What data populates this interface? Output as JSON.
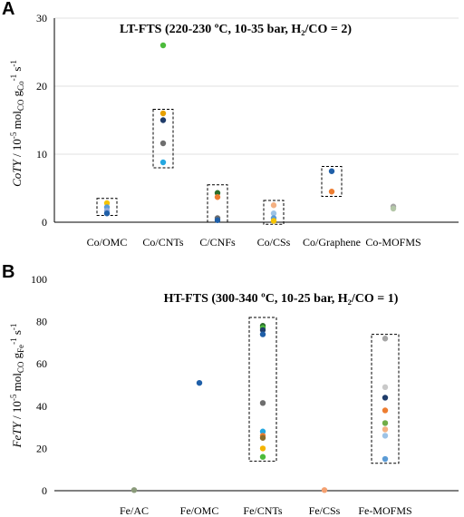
{
  "chart_data": [
    {
      "type": "scatter",
      "panel": "A",
      "title": "LT-FTS (220-230 ºC, 10-35 bar, H₂/CO = 2)",
      "ylabel": "CoTY / 10⁻⁵ mol_CO g_Co⁻¹ s⁻¹",
      "ylabel_parts": {
        "ital": "CoTY",
        "mid": " / 10",
        "sup1": "-5",
        "mid2": " mol",
        "sub1": "CO",
        "mid3": " g",
        "sub2": "Co",
        "sup2": "-1",
        "mid4": " s",
        "sup3": "-1"
      },
      "ylim": [
        0,
        30
      ],
      "yticks": [
        "0",
        "10",
        "20",
        "30"
      ],
      "grid": true,
      "categories": [
        "Co/OMC",
        "Co/CNTs",
        "C/CNFs",
        "Co/CSs",
        "Co/Graphene",
        "Co-MOFMS"
      ],
      "points": [
        {
          "cat": 0,
          "y": 2.8,
          "color": "#f5c400"
        },
        {
          "cat": 0,
          "y": 2.2,
          "color": "#5b9bd5"
        },
        {
          "cat": 0,
          "y": 1.7,
          "color": "#8faadc"
        },
        {
          "cat": 0,
          "y": 1.3,
          "color": "#1f5fa8"
        },
        {
          "cat": 1,
          "y": 26.0,
          "color": "#4cbb3c"
        },
        {
          "cat": 1,
          "y": 16.0,
          "color": "#e6a000"
        },
        {
          "cat": 1,
          "y": 15.0,
          "color": "#1f3c6a"
        },
        {
          "cat": 1,
          "y": 11.6,
          "color": "#6e6e6e"
        },
        {
          "cat": 1,
          "y": 8.8,
          "color": "#25a7e0"
        },
        {
          "cat": 2,
          "y": 4.3,
          "color": "#2b6e2b"
        },
        {
          "cat": 2,
          "y": 3.7,
          "color": "#ed7d31"
        },
        {
          "cat": 2,
          "y": 0.6,
          "color": "#6e6e6e"
        },
        {
          "cat": 2,
          "y": 0.3,
          "color": "#1f5fa8"
        },
        {
          "cat": 3,
          "y": 2.5,
          "color": "#f4b183"
        },
        {
          "cat": 3,
          "y": 1.3,
          "color": "#9dc3e6"
        },
        {
          "cat": 3,
          "y": 0.6,
          "color": "#5b9bd5"
        },
        {
          "cat": 3,
          "y": 0.2,
          "color": "#f5c400"
        },
        {
          "cat": 4,
          "y": 7.5,
          "color": "#1f5fa8"
        },
        {
          "cat": 4,
          "y": 4.5,
          "color": "#ed7d31"
        },
        {
          "cat": 5,
          "y": 2.3,
          "color": "#a5a5a5"
        },
        {
          "cat": 5,
          "y": 2.0,
          "color": "#b4c7a8"
        }
      ],
      "boxes": [
        {
          "cat": 0,
          "ymin": 1.0,
          "ymax": 3.5
        },
        {
          "cat": 1,
          "ymin": 8.0,
          "ymax": 16.6
        },
        {
          "cat": 2,
          "ymin": 0.0,
          "ymax": 5.5
        },
        {
          "cat": 3,
          "ymin": -0.3,
          "ymax": 3.2
        },
        {
          "cat": 4,
          "ymin": 3.8,
          "ymax": 8.2
        }
      ]
    },
    {
      "type": "scatter",
      "panel": "B",
      "title": "HT-FTS (300-340 ºC, 10-25 bar, H₂/CO = 1)",
      "ylabel": "FeTY / 10⁻⁵ mol_CO g_Fe⁻¹ s⁻¹",
      "ylabel_parts": {
        "ital": "FeTY",
        "mid": " / 10",
        "sup1": "-5",
        "mid2": " mol",
        "sub1": "CO",
        "mid3": " g",
        "sub2": "Fe",
        "sup2": "-1",
        "mid4": " s",
        "sup3": "-1"
      },
      "ylim": [
        0,
        100
      ],
      "yticks": [
        "0",
        "20",
        "40",
        "60",
        "80",
        "100"
      ],
      "grid": false,
      "categories": [
        "Fe/AC",
        "Fe/OMC",
        "Fe/CNTs",
        "Fe/CSs",
        "Fe-MOFMS"
      ],
      "points": [
        {
          "cat": 0,
          "y": 0.3,
          "color": "#8a9a7a"
        },
        {
          "cat": 1,
          "y": 51.0,
          "color": "#1f5fa8"
        },
        {
          "cat": 2,
          "y": 78.0,
          "color": "#2b6e2b"
        },
        {
          "cat": 2,
          "y": 77.0,
          "color": "#4cbb3c"
        },
        {
          "cat": 2,
          "y": 76.0,
          "color": "#1f3c6a"
        },
        {
          "cat": 2,
          "y": 74.0,
          "color": "#1f5fa8"
        },
        {
          "cat": 2,
          "y": 41.5,
          "color": "#6e6e6e"
        },
        {
          "cat": 2,
          "y": 28.0,
          "color": "#25a7e0"
        },
        {
          "cat": 2,
          "y": 26.0,
          "color": "#ed7d31"
        },
        {
          "cat": 2,
          "y": 25.0,
          "color": "#8c6d2c"
        },
        {
          "cat": 2,
          "y": 20.0,
          "color": "#f5b400"
        },
        {
          "cat": 2,
          "y": 16.0,
          "color": "#4cbb3c"
        },
        {
          "cat": 3,
          "y": 0.3,
          "color": "#f4a070"
        },
        {
          "cat": 4,
          "y": 72.0,
          "color": "#a5a5a5"
        },
        {
          "cat": 4,
          "y": 49.0,
          "color": "#c9c9c9"
        },
        {
          "cat": 4,
          "y": 44.0,
          "color": "#1f3c6a"
        },
        {
          "cat": 4,
          "y": 38.0,
          "color": "#ed7d31"
        },
        {
          "cat": 4,
          "y": 32.0,
          "color": "#70ad47"
        },
        {
          "cat": 4,
          "y": 29.0,
          "color": "#f4b183"
        },
        {
          "cat": 4,
          "y": 26.0,
          "color": "#9dc3e6"
        },
        {
          "cat": 4,
          "y": 15.0,
          "color": "#5b9bd5"
        }
      ],
      "boxes": [
        {
          "cat": 2,
          "ymin": 14.0,
          "ymax": 82.0
        },
        {
          "cat": 4,
          "ymin": 13.0,
          "ymax": 74.0
        }
      ]
    }
  ]
}
